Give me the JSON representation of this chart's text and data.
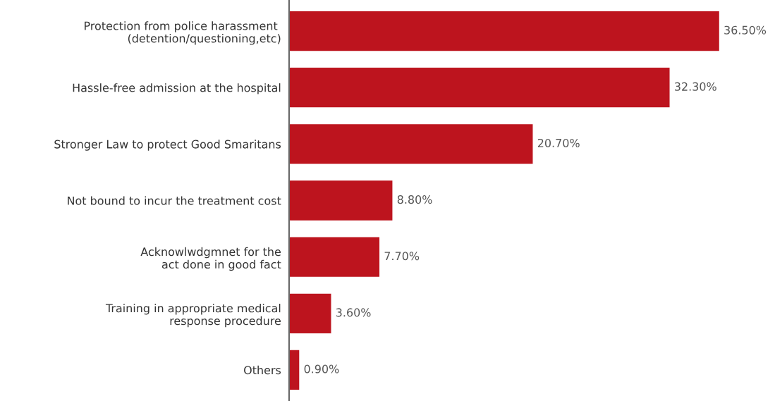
{
  "chart_data": {
    "type": "bar",
    "orientation": "horizontal",
    "categories": [
      "Protection from police harassment \n(detention/questioning,etc)",
      "Hassle-free admission at the hospital",
      "Stronger Law to protect Good Smaritans",
      "Not bound to incur the treatment cost",
      "Acknowlwdgmnet for the\nact done in good fact",
      "Training in appropriate medical\nresponse procedure",
      "Others"
    ],
    "values": [
      36.5,
      32.3,
      20.7,
      8.8,
      7.7,
      3.6,
      0.9
    ],
    "value_labels": [
      "36.50%",
      "32.30%",
      "20.70%",
      "8.80%",
      "7.70%",
      "3.60%",
      "0.90%"
    ],
    "color": "#bd141e",
    "grid": false,
    "legend": false,
    "tick_labels": "y"
  }
}
